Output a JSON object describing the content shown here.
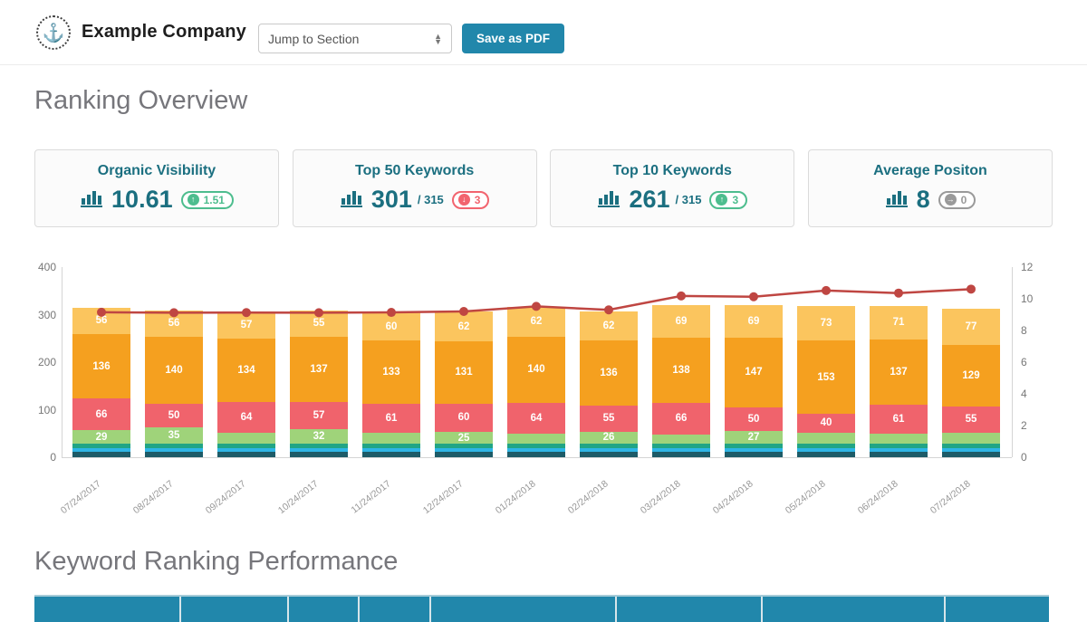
{
  "header": {
    "logo_icon": "anchor-icon",
    "company_name": "Example Company",
    "jump_select_value": "Jump to Section",
    "save_pdf_label": "Save as PDF"
  },
  "sections": {
    "ranking_overview": "Ranking Overview",
    "keyword_ranking": "Keyword Ranking Performance"
  },
  "cards": [
    {
      "title": "Organic Visibility",
      "value": "10.61",
      "suffix": "",
      "badge": {
        "value": "1.51",
        "direction": "up",
        "color": "green"
      }
    },
    {
      "title": "Top 50 Keywords",
      "value": "301",
      "suffix": "/ 315",
      "badge": {
        "value": "3",
        "direction": "down",
        "color": "red"
      }
    },
    {
      "title": "Top 10 Keywords",
      "value": "261",
      "suffix": "/ 315",
      "badge": {
        "value": "3",
        "direction": "up",
        "color": "green"
      }
    },
    {
      "title": "Average Positon",
      "value": "8",
      "suffix": "",
      "badge": {
        "value": "0",
        "direction": "right",
        "color": "gray"
      }
    }
  ],
  "colors": {
    "accent_teal": "#2187ab",
    "card_text_teal": "#1b6f80",
    "badge_green": "#4dbd8e",
    "badge_red": "#f2646e",
    "badge_gray": "#9a9a9a",
    "line_red": "#bf4642"
  },
  "chart_data": {
    "type": "bar",
    "subtype": "stacked-bars-with-line",
    "categories": [
      "07/24/2017",
      "08/24/2017",
      "09/24/2017",
      "10/24/2017",
      "11/24/2017",
      "12/24/2017",
      "01/24/2018",
      "02/24/2018",
      "03/24/2018",
      "04/24/2018",
      "05/24/2018",
      "06/24/2018",
      "07/24/2018"
    ],
    "left_axis": {
      "ticks": [
        0,
        100,
        200,
        300,
        400
      ],
      "max": 400
    },
    "right_axis": {
      "ticks": [
        0,
        2,
        4,
        6,
        8,
        10,
        12
      ],
      "max": 12
    },
    "grid": false,
    "legend": "none",
    "series": [
      {
        "name": "rank-band-darkteal",
        "color": "#1d5b68",
        "show_labels": false,
        "values": [
          12,
          12,
          12,
          12,
          12,
          12,
          12,
          12,
          12,
          12,
          12,
          12,
          12
        ]
      },
      {
        "name": "rank-band-cyan",
        "color": "#2fb5e5",
        "show_labels": false,
        "values": [
          7,
          7,
          7,
          7,
          7,
          7,
          7,
          7,
          7,
          7,
          7,
          7,
          7
        ]
      },
      {
        "name": "rank-band-emerald",
        "color": "#21a585",
        "show_labels": false,
        "values": [
          9,
          9,
          9,
          9,
          9,
          9,
          9,
          9,
          9,
          9,
          9,
          9,
          9
        ]
      },
      {
        "name": "rank-band-green",
        "color": "#9fd37a",
        "show_labels": true,
        "values": [
          29,
          35,
          24,
          32,
          23,
          25,
          22,
          26,
          20,
          27,
          24,
          22,
          24
        ],
        "labels": [
          "29",
          "35",
          null,
          "32",
          null,
          "25",
          null,
          "26",
          null,
          "27",
          null,
          null,
          null
        ]
      },
      {
        "name": "rank-band-red",
        "color": "#f0636c",
        "show_labels": true,
        "values": [
          66,
          50,
          64,
          57,
          61,
          60,
          64,
          55,
          66,
          50,
          40,
          61,
          55
        ]
      },
      {
        "name": "rank-band-orange",
        "color": "#f5a01f",
        "show_labels": true,
        "values": [
          136,
          140,
          134,
          137,
          133,
          131,
          140,
          136,
          138,
          147,
          153,
          137,
          129
        ]
      },
      {
        "name": "rank-band-yellow",
        "color": "#fbc55e",
        "show_labels": true,
        "values": [
          56,
          56,
          57,
          55,
          60,
          62,
          62,
          62,
          69,
          69,
          73,
          71,
          77
        ]
      }
    ],
    "line": {
      "name": "organic-visibility-trend",
      "color": "#bf4642",
      "axis": "right",
      "values": [
        9.15,
        9.12,
        9.13,
        9.12,
        9.14,
        9.2,
        9.52,
        9.3,
        10.18,
        10.13,
        10.52,
        10.36,
        10.61
      ]
    }
  },
  "table": {
    "visible_header_text": [],
    "column_count": 8
  }
}
